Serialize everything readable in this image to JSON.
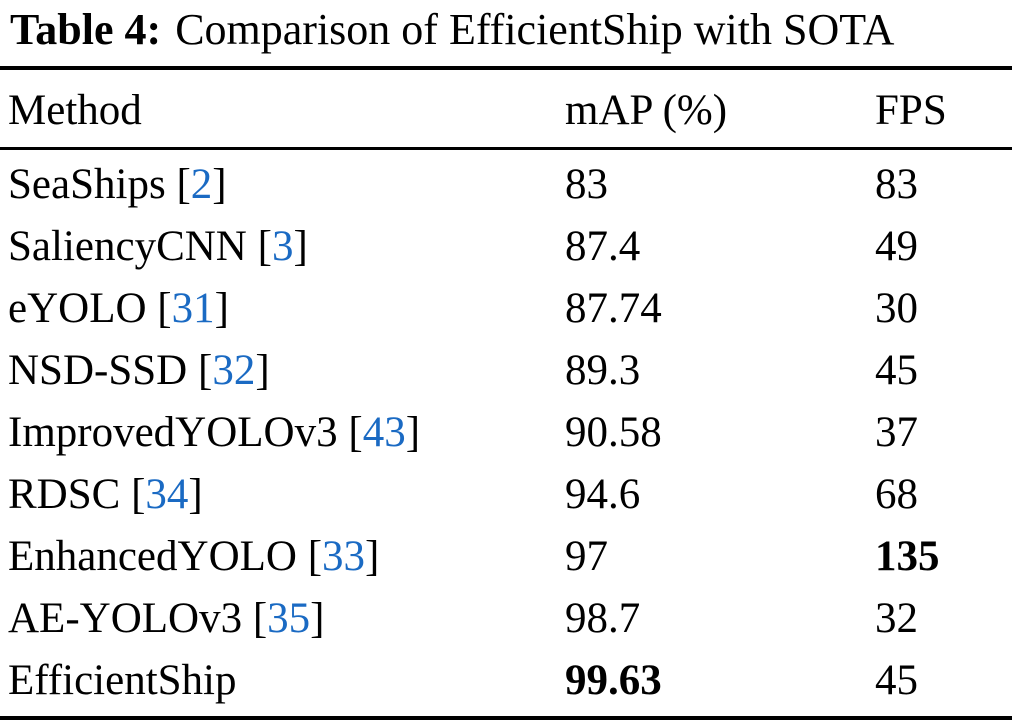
{
  "caption": {
    "label": "Table 4:",
    "text": "Comparison of EfficientShip with SOTA"
  },
  "colors": {
    "text": "#000000",
    "citation_link": "#1a6ac3",
    "rule": "#000000",
    "background": "#ffffff"
  },
  "columns": [
    "Method",
    "mAP (%)",
    "FPS"
  ],
  "rows": [
    {
      "method": "SeaShips",
      "cite": "2",
      "map": "83",
      "fps": "83",
      "map_bold": false,
      "fps_bold": false
    },
    {
      "method": "SaliencyCNN",
      "cite": "3",
      "map": "87.4",
      "fps": "49",
      "map_bold": false,
      "fps_bold": false
    },
    {
      "method": "eYOLO",
      "cite": "31",
      "map": "87.74",
      "fps": "30",
      "map_bold": false,
      "fps_bold": false
    },
    {
      "method": "NSD-SSD",
      "cite": "32",
      "map": "89.3",
      "fps": "45",
      "map_bold": false,
      "fps_bold": false
    },
    {
      "method": "ImprovedYOLOv3",
      "cite": "43",
      "map": "90.58",
      "fps": "37",
      "map_bold": false,
      "fps_bold": false
    },
    {
      "method": "RDSC",
      "cite": "34",
      "map": "94.6",
      "fps": "68",
      "map_bold": false,
      "fps_bold": false
    },
    {
      "method": "EnhancedYOLO",
      "cite": "33",
      "map": "97",
      "fps": "135",
      "map_bold": false,
      "fps_bold": true
    },
    {
      "method": "AE-YOLOv3",
      "cite": "35",
      "map": "98.7",
      "fps": "32",
      "map_bold": false,
      "fps_bold": false
    },
    {
      "method": "EfficientShip",
      "cite": null,
      "map": "99.63",
      "fps": "45",
      "map_bold": true,
      "fps_bold": false
    }
  ]
}
